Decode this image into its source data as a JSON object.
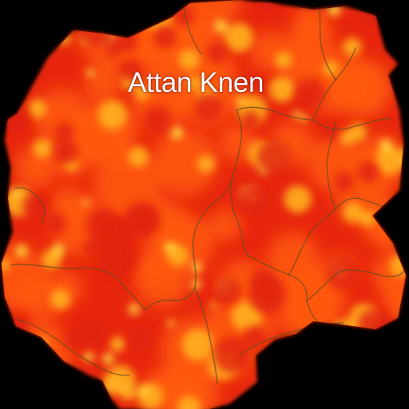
{
  "map": {
    "title": "Attan Knen",
    "style": "heatmap",
    "colors": {
      "background": "#000000",
      "low": "#e0200a",
      "mid": "#ff5a10",
      "high": "#ffb020",
      "peak": "#ffe040",
      "border_lines": "#6b4a1e"
    }
  }
}
